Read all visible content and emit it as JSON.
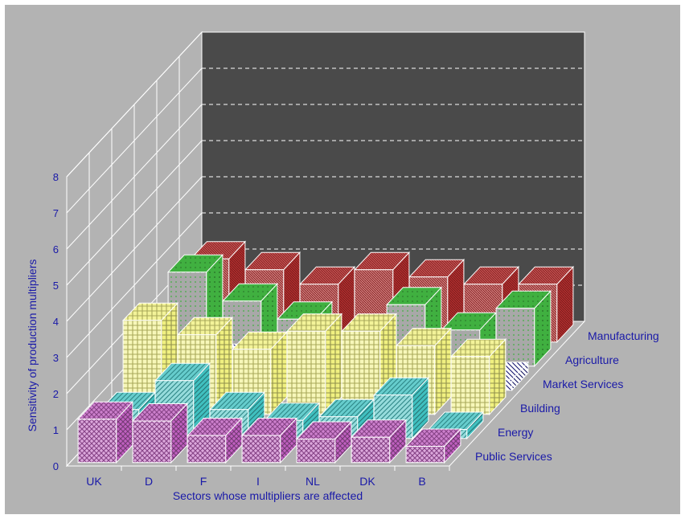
{
  "chart_data": {
    "type": "bar3d",
    "title": "",
    "xlabel": "Sectors whose multipliers are affected",
    "zlabel": "Sensitivity of production multipliers",
    "zlim": [
      0,
      8
    ],
    "zticks": [
      "0",
      "1",
      "2",
      "3",
      "4",
      "5",
      "6",
      "7",
      "8"
    ],
    "x_categories": [
      "UK",
      "D",
      "F",
      "I",
      "NL",
      "DK",
      "B"
    ],
    "series": [
      {
        "name": "Public Services",
        "color": "#c060c0",
        "values": [
          1.2,
          1.15,
          0.75,
          0.75,
          0.65,
          0.7,
          0.45
        ]
      },
      {
        "name": "Energy",
        "color": "#40c0c0",
        "values": [
          0.8,
          1.6,
          0.8,
          0.5,
          0.6,
          1.2,
          0.25
        ]
      },
      {
        "name": "Building",
        "color": "#f0f080",
        "values": [
          2.6,
          2.2,
          1.8,
          2.3,
          2.3,
          1.9,
          1.6
        ]
      },
      {
        "name": "Market Services",
        "color": "#2020a0",
        "values": [
          0.8,
          0.8,
          0.65,
          0.3,
          0.4,
          0.3,
          0.3
        ]
      },
      {
        "name": "Agriculture",
        "color": "#40b040",
        "values": [
          2.6,
          1.8,
          1.3,
          0.6,
          1.7,
          1.0,
          1.6
        ]
      },
      {
        "name": "Manufacturing",
        "color": "#c03030",
        "values": [
          2.3,
          2.0,
          1.6,
          2.0,
          1.8,
          1.6,
          1.6
        ]
      }
    ],
    "grid": true,
    "legend": "right-depth-axis"
  }
}
